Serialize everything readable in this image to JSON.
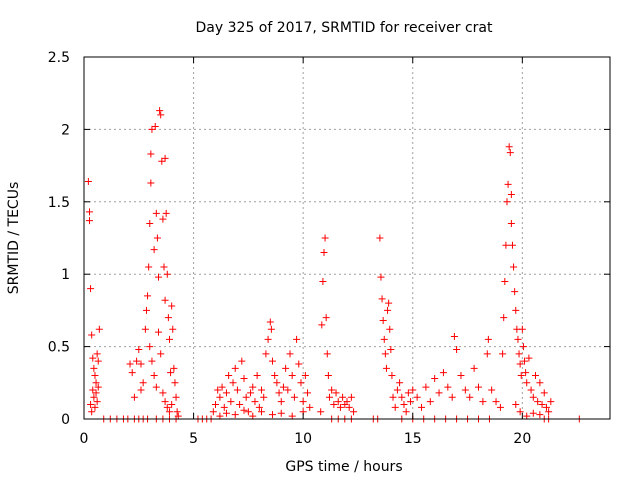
{
  "chart_data": {
    "type": "scatter",
    "title": "Day 325 of 2017, SRMTID for receiver crat",
    "xlabel": "GPS time / hours",
    "ylabel": "SRMTID / TECUs",
    "xlim": [
      0,
      24
    ],
    "ylim": [
      0,
      2.5
    ],
    "x_ticks": [
      "0",
      "5",
      "10",
      "15",
      "20"
    ],
    "x_tick_values": [
      0,
      5,
      10,
      15,
      20
    ],
    "y_ticks": [
      "0",
      "0.5",
      "1",
      "1.5",
      "2",
      "2.5"
    ],
    "y_tick_values": [
      0,
      0.5,
      1,
      1.5,
      2,
      2.5
    ],
    "grid": true,
    "marker": "+",
    "color": "#ff0000",
    "series": [
      {
        "name": "SRMTID",
        "points": [
          [
            0.2,
            1.64
          ],
          [
            0.25,
            1.43
          ],
          [
            0.25,
            1.37
          ],
          [
            0.3,
            0.9
          ],
          [
            0.35,
            0.58
          ],
          [
            0.4,
            0.42
          ],
          [
            0.45,
            0.35
          ],
          [
            0.5,
            0.3
          ],
          [
            0.55,
            0.25
          ],
          [
            0.6,
            0.45
          ],
          [
            0.65,
            0.4
          ],
          [
            0.7,
            0.62
          ],
          [
            0.6,
            0.12
          ],
          [
            0.5,
            0.08
          ],
          [
            0.45,
            0.15
          ],
          [
            0.4,
            0.2
          ],
          [
            0.3,
            0.1
          ],
          [
            0.35,
            0.05
          ],
          [
            0.55,
            0.18
          ],
          [
            0.65,
            0.22
          ],
          [
            2.1,
            0.38
          ],
          [
            2.2,
            0.32
          ],
          [
            2.3,
            0.15
          ],
          [
            2.4,
            0.4
          ],
          [
            2.5,
            0.48
          ],
          [
            2.6,
            0.38
          ],
          [
            2.6,
            0.2
          ],
          [
            2.7,
            0.25
          ],
          [
            2.8,
            0.62
          ],
          [
            2.85,
            0.75
          ],
          [
            2.9,
            0.85
          ],
          [
            2.95,
            1.05
          ],
          [
            3.0,
            1.35
          ],
          [
            3.05,
            1.63
          ],
          [
            3.05,
            1.83
          ],
          [
            3.1,
            2.0
          ],
          [
            3.2,
            1.17
          ],
          [
            3.25,
            2.02
          ],
          [
            3.3,
            1.42
          ],
          [
            3.35,
            1.25
          ],
          [
            3.4,
            0.98
          ],
          [
            3.45,
            2.13
          ],
          [
            3.5,
            2.1
          ],
          [
            3.55,
            1.78
          ],
          [
            3.6,
            1.38
          ],
          [
            3.65,
            1.05
          ],
          [
            3.7,
            0.82
          ],
          [
            3.7,
            1.8
          ],
          [
            3.75,
            1.42
          ],
          [
            3.8,
            1.0
          ],
          [
            3.85,
            0.7
          ],
          [
            3.9,
            0.55
          ],
          [
            3.95,
            0.32
          ],
          [
            4.0,
            0.78
          ],
          [
            4.05,
            0.62
          ],
          [
            4.1,
            0.35
          ],
          [
            4.15,
            0.25
          ],
          [
            4.2,
            0.15
          ],
          [
            3.0,
            0.5
          ],
          [
            3.1,
            0.4
          ],
          [
            3.2,
            0.3
          ],
          [
            3.3,
            0.22
          ],
          [
            3.4,
            0.6
          ],
          [
            3.5,
            0.45
          ],
          [
            3.6,
            0.18
          ],
          [
            3.7,
            0.12
          ],
          [
            3.8,
            0.08
          ],
          [
            3.9,
            0.05
          ],
          [
            4.0,
            0.1
          ],
          [
            4.25,
            0.05
          ],
          [
            4.3,
            0.02
          ],
          [
            0.9,
            0.0
          ],
          [
            1.2,
            0.0
          ],
          [
            1.5,
            0.0
          ],
          [
            1.8,
            0.0
          ],
          [
            2.0,
            0.0
          ],
          [
            2.3,
            0.0
          ],
          [
            2.5,
            0.0
          ],
          [
            2.7,
            0.0
          ],
          [
            2.9,
            0.0
          ],
          [
            3.3,
            0.0
          ],
          [
            3.6,
            0.0
          ],
          [
            3.9,
            0.0
          ],
          [
            4.2,
            0.0
          ],
          [
            5.2,
            0.0
          ],
          [
            5.4,
            0.0
          ],
          [
            5.6,
            0.0
          ],
          [
            5.8,
            0.0
          ],
          [
            5.9,
            0.05
          ],
          [
            6.0,
            0.1
          ],
          [
            6.1,
            0.2
          ],
          [
            6.2,
            0.15
          ],
          [
            6.3,
            0.22
          ],
          [
            6.4,
            0.08
          ],
          [
            6.5,
            0.18
          ],
          [
            6.6,
            0.3
          ],
          [
            6.7,
            0.12
          ],
          [
            6.8,
            0.25
          ],
          [
            6.9,
            0.35
          ],
          [
            7.0,
            0.2
          ],
          [
            7.1,
            0.1
          ],
          [
            7.2,
            0.4
          ],
          [
            7.3,
            0.28
          ],
          [
            7.4,
            0.15
          ],
          [
            7.5,
            0.05
          ],
          [
            7.6,
            0.18
          ],
          [
            7.7,
            0.22
          ],
          [
            7.8,
            0.12
          ],
          [
            7.9,
            0.3
          ],
          [
            8.0,
            0.08
          ],
          [
            8.1,
            0.2
          ],
          [
            8.2,
            0.15
          ],
          [
            8.3,
            0.45
          ],
          [
            8.4,
            0.55
          ],
          [
            8.5,
            0.67
          ],
          [
            8.55,
            0.62
          ],
          [
            8.6,
            0.4
          ],
          [
            8.7,
            0.3
          ],
          [
            8.8,
            0.25
          ],
          [
            8.9,
            0.18
          ],
          [
            9.0,
            0.12
          ],
          [
            9.1,
            0.22
          ],
          [
            9.2,
            0.35
          ],
          [
            9.3,
            0.2
          ],
          [
            9.4,
            0.45
          ],
          [
            9.5,
            0.3
          ],
          [
            9.6,
            0.15
          ],
          [
            9.7,
            0.55
          ],
          [
            9.8,
            0.38
          ],
          [
            9.9,
            0.25
          ],
          [
            10.0,
            0.12
          ],
          [
            10.1,
            0.3
          ],
          [
            10.2,
            0.18
          ],
          [
            10.3,
            0.08
          ],
          [
            6.2,
            0.02
          ],
          [
            6.5,
            0.04
          ],
          [
            6.9,
            0.03
          ],
          [
            7.3,
            0.06
          ],
          [
            7.7,
            0.02
          ],
          [
            8.1,
            0.05
          ],
          [
            8.6,
            0.03
          ],
          [
            9.0,
            0.04
          ],
          [
            9.5,
            0.02
          ],
          [
            10.0,
            0.05
          ],
          [
            10.8,
            0.05
          ],
          [
            10.85,
            0.65
          ],
          [
            10.9,
            0.95
          ],
          [
            10.95,
            1.15
          ],
          [
            11.0,
            1.25
          ],
          [
            11.05,
            0.7
          ],
          [
            11.1,
            0.45
          ],
          [
            11.15,
            0.3
          ],
          [
            11.2,
            0.15
          ],
          [
            11.3,
            0.2
          ],
          [
            11.4,
            0.1
          ],
          [
            11.5,
            0.18
          ],
          [
            11.6,
            0.12
          ],
          [
            11.7,
            0.08
          ],
          [
            11.8,
            0.15
          ],
          [
            11.9,
            0.1
          ],
          [
            12.0,
            0.12
          ],
          [
            12.1,
            0.08
          ],
          [
            12.2,
            0.15
          ],
          [
            12.3,
            0.05
          ],
          [
            11.3,
            0.0
          ],
          [
            11.6,
            0.0
          ],
          [
            11.9,
            0.0
          ],
          [
            12.2,
            0.0
          ],
          [
            13.2,
            0.0
          ],
          [
            13.4,
            0.0
          ],
          [
            13.5,
            1.25
          ],
          [
            13.55,
            0.98
          ],
          [
            13.6,
            0.83
          ],
          [
            13.65,
            0.68
          ],
          [
            13.7,
            0.55
          ],
          [
            13.75,
            0.45
          ],
          [
            13.8,
            0.35
          ],
          [
            13.85,
            0.75
          ],
          [
            13.9,
            0.8
          ],
          [
            13.95,
            0.62
          ],
          [
            14.0,
            0.48
          ],
          [
            14.05,
            0.3
          ],
          [
            14.1,
            0.15
          ],
          [
            14.2,
            0.08
          ],
          [
            14.3,
            0.2
          ],
          [
            14.4,
            0.25
          ],
          [
            14.5,
            0.15
          ],
          [
            14.6,
            0.1
          ],
          [
            14.7,
            0.05
          ],
          [
            14.8,
            0.18
          ],
          [
            14.9,
            0.12
          ],
          [
            15.0,
            0.2
          ],
          [
            15.2,
            0.15
          ],
          [
            15.4,
            0.08
          ],
          [
            15.6,
            0.22
          ],
          [
            15.8,
            0.12
          ],
          [
            16.0,
            0.28
          ],
          [
            16.2,
            0.18
          ],
          [
            16.4,
            0.32
          ],
          [
            16.6,
            0.22
          ],
          [
            16.8,
            0.15
          ],
          [
            16.9,
            0.57
          ],
          [
            17.0,
            0.48
          ],
          [
            17.2,
            0.3
          ],
          [
            17.4,
            0.2
          ],
          [
            17.6,
            0.15
          ],
          [
            17.8,
            0.35
          ],
          [
            18.0,
            0.22
          ],
          [
            18.2,
            0.12
          ],
          [
            18.4,
            0.45
          ],
          [
            18.45,
            0.55
          ],
          [
            18.6,
            0.2
          ],
          [
            18.8,
            0.12
          ],
          [
            19.0,
            0.08
          ],
          [
            14.5,
            0.0
          ],
          [
            15.0,
            0.0
          ],
          [
            15.5,
            0.0
          ],
          [
            16.0,
            0.0
          ],
          [
            16.5,
            0.0
          ],
          [
            17.0,
            0.0
          ],
          [
            17.5,
            0.0
          ],
          [
            18.0,
            0.0
          ],
          [
            18.5,
            0.0
          ],
          [
            19.1,
            0.45
          ],
          [
            19.15,
            0.7
          ],
          [
            19.2,
            0.95
          ],
          [
            19.25,
            1.2
          ],
          [
            19.3,
            1.5
          ],
          [
            19.35,
            1.62
          ],
          [
            19.4,
            1.88
          ],
          [
            19.45,
            1.84
          ],
          [
            19.5,
            1.55
          ],
          [
            19.5,
            1.35
          ],
          [
            19.55,
            1.2
          ],
          [
            19.6,
            1.05
          ],
          [
            19.65,
            0.88
          ],
          [
            19.7,
            0.75
          ],
          [
            19.75,
            0.62
          ],
          [
            19.8,
            0.55
          ],
          [
            19.85,
            0.45
          ],
          [
            19.9,
            0.38
          ],
          [
            19.95,
            0.3
          ],
          [
            20.0,
            0.62
          ],
          [
            20.05,
            0.5
          ],
          [
            20.1,
            0.4
          ],
          [
            20.15,
            0.32
          ],
          [
            20.2,
            0.25
          ],
          [
            20.3,
            0.42
          ],
          [
            20.4,
            0.2
          ],
          [
            20.5,
            0.15
          ],
          [
            20.6,
            0.3
          ],
          [
            20.7,
            0.12
          ],
          [
            20.8,
            0.25
          ],
          [
            20.9,
            0.1
          ],
          [
            21.0,
            0.18
          ],
          [
            21.1,
            0.08
          ],
          [
            21.2,
            0.05
          ],
          [
            21.3,
            0.12
          ],
          [
            19.7,
            0.1
          ],
          [
            19.9,
            0.05
          ],
          [
            20.2,
            0.02
          ],
          [
            20.5,
            0.04
          ],
          [
            20.8,
            0.03
          ],
          [
            21.0,
            0.0
          ],
          [
            21.2,
            0.0
          ],
          [
            22.6,
            0.0
          ]
        ]
      }
    ]
  }
}
